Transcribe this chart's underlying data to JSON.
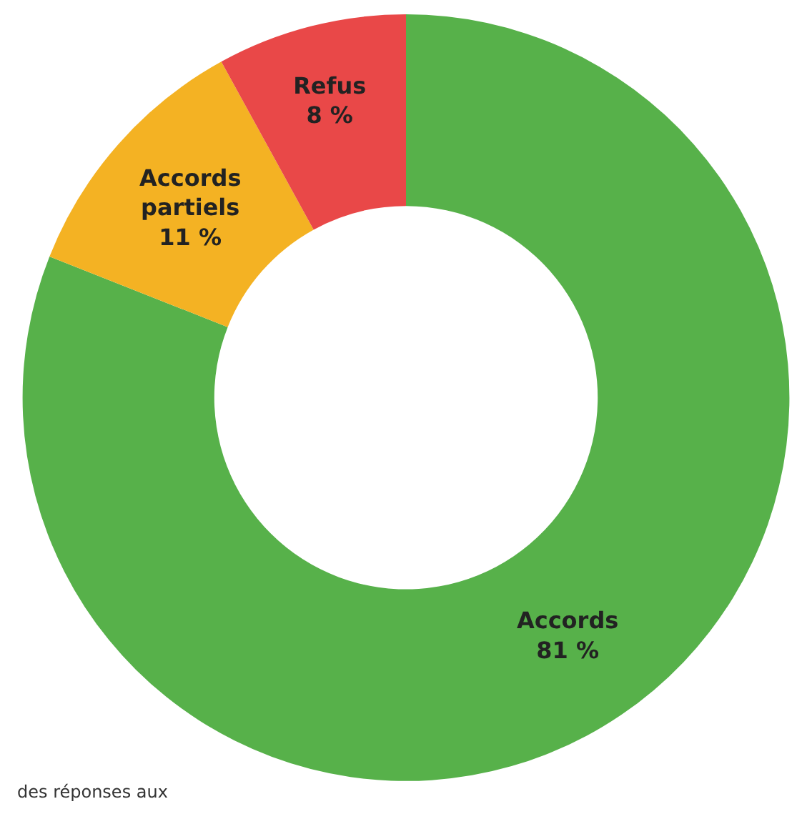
{
  "chart_data": {
    "type": "donut",
    "categories": [
      "Accords",
      "Accords partiels",
      "Refus"
    ],
    "values": [
      81,
      11,
      8
    ],
    "value_labels": [
      "81 %",
      "11 %",
      "8 %"
    ],
    "colors": [
      "#57b14a",
      "#f4b223",
      "#e94848"
    ],
    "legend": false,
    "annotations": [
      "des réponses aux"
    ]
  }
}
